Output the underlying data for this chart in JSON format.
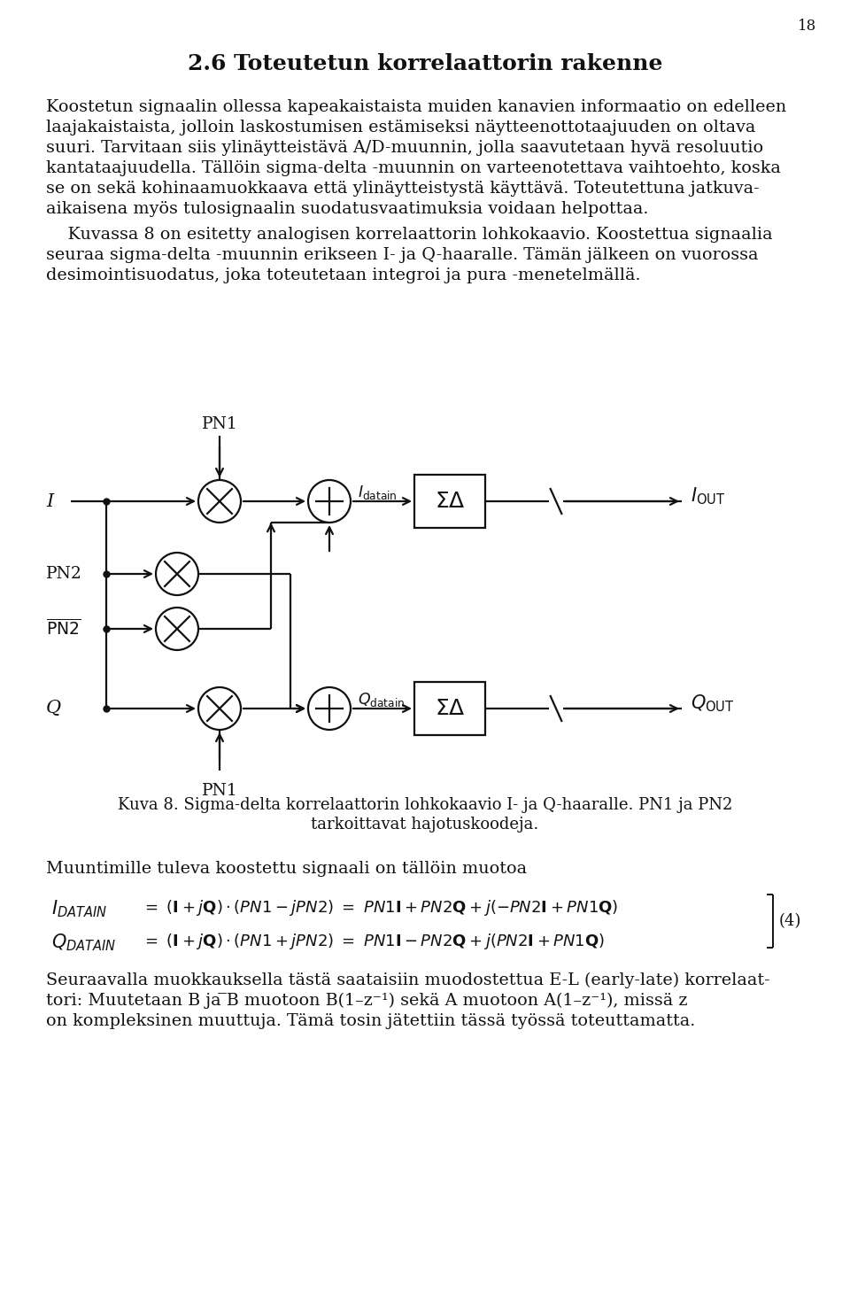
{
  "page_number": "18",
  "title": "2.6 Toteutetun korrelaattorin rakenne",
  "p1_lines": [
    "Koostetun signaalin ollessa kapeakaistaista muiden kanavien informaatio on edelleen",
    "laajakaistaista, jolloin laskostumisen estämiseksi näytteenottotaajuuden on oltava",
    "suuri. Tarvitaan siis ylinäytteistävä A/D-muunnin, jolla saavutetaan hyvä resoluutio",
    "kantataajuudella. Tällöin sigma-delta -muunnin on varteenotettava vaihtoehto, koska",
    "se on sekä kohinaamuokkaava että ylinäytteistystä käyttävä. Toteutettuna jatkuva-",
    "aikaisena myös tulosignaalin suodatusvaatimuksia voidaan helpottaa."
  ],
  "p2_lines": [
    "    Kuvassa 8 on esitetty analogisen korrelaattorin lohkokaavio. Koostettua signaalia",
    "seuraa sigma-delta -muunnin erikseen I- ja Q-haaralle. Tämän jälkeen on vuorossa",
    "desimointisuodatus, joka toteutetaan integroi ja pura -menetelmällä."
  ],
  "caption_line1": "Kuva 8. Sigma-delta korrelaattorin lohkokaavio I- ja Q-haaralle. PN1 ja PN2",
  "caption_line2": "tarkoittavat hajotuskoodeja.",
  "p3": "Muuntimille tuleva koostettu signaali on tällöin muotoa",
  "p4_lines": [
    "Seuraavalla muokkauksella tästä saataisiin muodostettua E-L (early-late) korrelaat-",
    "tori: Muutetaan B ja ̅B muotoon B(1–z⁻¹) sekä A muotoon A(1–z⁻¹), missä z",
    "on kompleksinen muuttuja. Tämä tosin jätettiin tässä työssä toteuttamatta."
  ]
}
